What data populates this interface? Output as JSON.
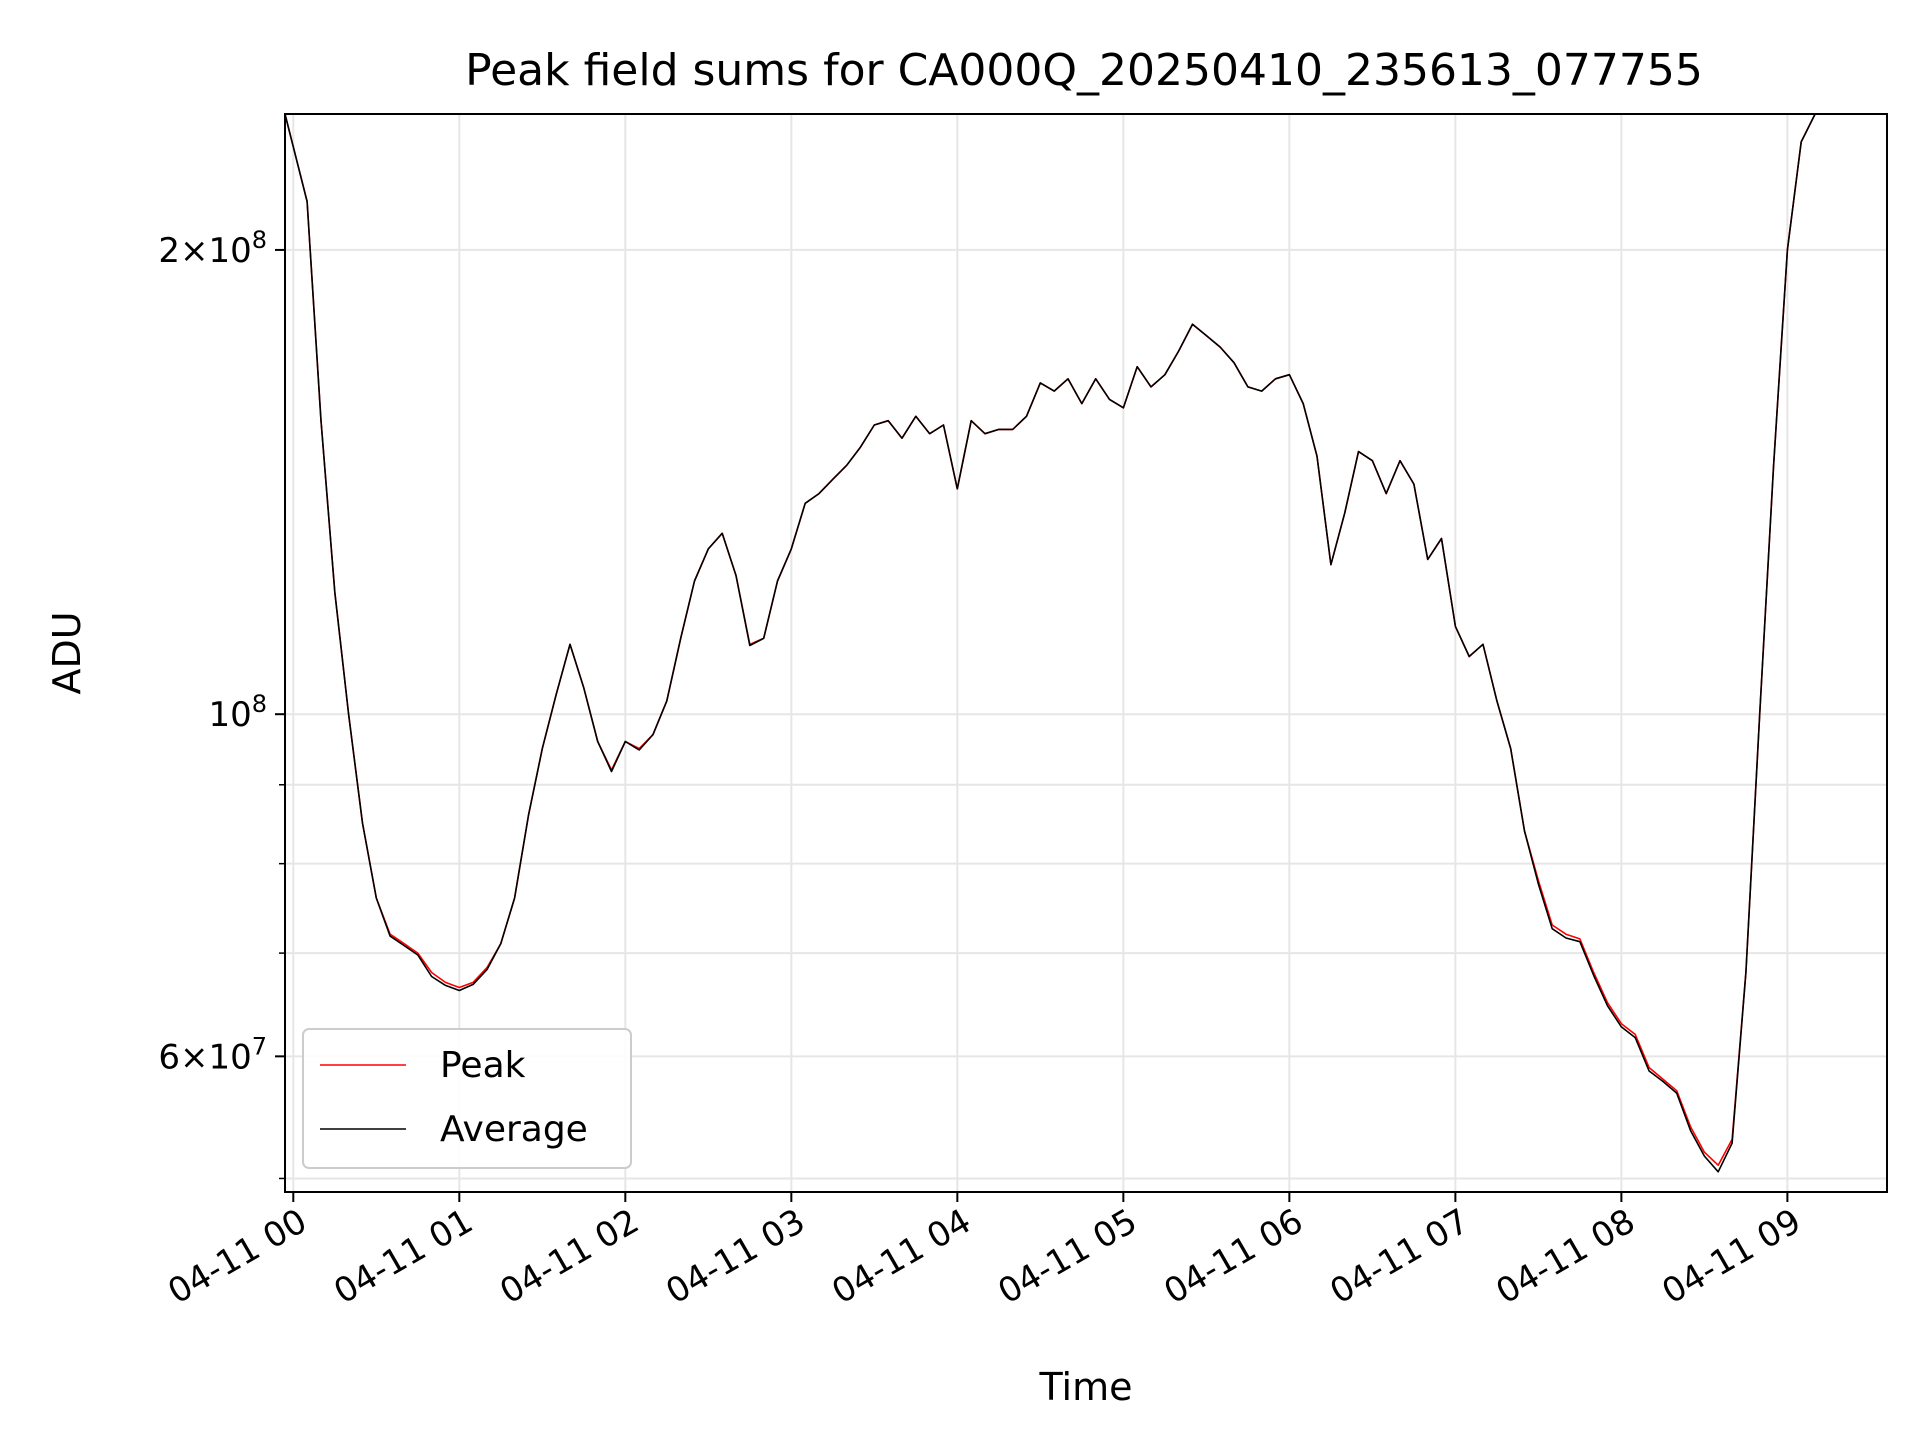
{
  "chart_data": {
    "type": "line",
    "title": "Peak field sums for CA000Q_20250410_235613_077755",
    "xlabel": "Time",
    "ylabel": "ADU",
    "y_scale": "log",
    "ylim": [
      49000000,
      245000000
    ],
    "xlim": [
      "04-10 23:57",
      "04-11 09:36"
    ],
    "x_ticks": [
      "04-11 00",
      "04-11 01",
      "04-11 02",
      "04-11 03",
      "04-11 04",
      "04-11 05",
      "04-11 06",
      "04-11 07",
      "04-11 08",
      "04-11 09"
    ],
    "y_ticks": [
      {
        "label_mantissa": "2",
        "label_exp": "8",
        "value": 200000000
      },
      {
        "label_mantissa": "",
        "label_exp": "8",
        "value": 100000000
      },
      {
        "label_mantissa": "6",
        "label_exp": "7",
        "value": 60000000
      }
    ],
    "y_minor_ticks": [
      50000000,
      70000000,
      80000000,
      90000000
    ],
    "grid": true,
    "legend_position": "lower-left",
    "series": [
      {
        "name": "Peak",
        "color": "#ff0000",
        "points": [
          [
            "04-10 23:57",
            245000000
          ],
          [
            "04-11 00:05",
            215000000
          ],
          [
            "04-11 00:10",
            155000000
          ],
          [
            "04-11 00:15",
            120000000
          ],
          [
            "04-11 00:20",
            100000000
          ],
          [
            "04-11 00:25",
            85000000
          ],
          [
            "04-11 00:30",
            76000000
          ],
          [
            "04-11 00:35",
            72000000
          ],
          [
            "04-11 00:40",
            71000000
          ],
          [
            "04-11 00:45",
            70000000
          ],
          [
            "04-11 00:50",
            68000000
          ],
          [
            "04-11 00:55",
            67000000
          ],
          [
            "04-11 01:00",
            66500000
          ],
          [
            "04-11 01:05",
            67000000
          ],
          [
            "04-11 01:10",
            68500000
          ],
          [
            "04-11 01:15",
            71000000
          ],
          [
            "04-11 01:20",
            76000000
          ],
          [
            "04-11 01:25",
            86000000
          ],
          [
            "04-11 01:30",
            95000000
          ],
          [
            "04-11 01:35",
            103000000
          ],
          [
            "04-11 01:40",
            111000000
          ],
          [
            "04-11 01:45",
            104000000
          ],
          [
            "04-11 01:50",
            96000000
          ],
          [
            "04-11 01:55",
            92000000
          ],
          [
            "04-11 02:00",
            96000000
          ],
          [
            "04-11 02:05",
            95000000
          ],
          [
            "04-11 02:10",
            97000000
          ],
          [
            "04-11 02:15",
            102000000
          ],
          [
            "04-11 02:20",
            112000000
          ],
          [
            "04-11 02:25",
            122000000
          ],
          [
            "04-11 02:30",
            128000000
          ],
          [
            "04-11 02:35",
            131000000
          ],
          [
            "04-11 02:40",
            123000000
          ],
          [
            "04-11 02:45",
            111000000
          ],
          [
            "04-11 02:50",
            112000000
          ],
          [
            "04-11 02:55",
            122000000
          ],
          [
            "04-11 03:00",
            128000000
          ],
          [
            "04-11 03:05",
            137000000
          ],
          [
            "04-11 03:10",
            139000000
          ],
          [
            "04-11 03:15",
            142000000
          ],
          [
            "04-11 03:20",
            145000000
          ],
          [
            "04-11 03:25",
            149000000
          ],
          [
            "04-11 03:30",
            154000000
          ],
          [
            "04-11 03:35",
            155000000
          ],
          [
            "04-11 03:40",
            151000000
          ],
          [
            "04-11 03:45",
            156000000
          ],
          [
            "04-11 03:50",
            152000000
          ],
          [
            "04-11 03:55",
            154000000
          ],
          [
            "04-11 04:00",
            140000000
          ],
          [
            "04-11 04:05",
            155000000
          ],
          [
            "04-11 04:10",
            152000000
          ],
          [
            "04-11 04:15",
            153000000
          ],
          [
            "04-11 04:20",
            153000000
          ],
          [
            "04-11 04:25",
            156000000
          ],
          [
            "04-11 04:30",
            164000000
          ],
          [
            "04-11 04:35",
            162000000
          ],
          [
            "04-11 04:40",
            165000000
          ],
          [
            "04-11 04:45",
            159000000
          ],
          [
            "04-11 04:50",
            165000000
          ],
          [
            "04-11 04:55",
            160000000
          ],
          [
            "04-11 05:00",
            158000000
          ],
          [
            "04-11 05:05",
            168000000
          ],
          [
            "04-11 05:10",
            163000000
          ],
          [
            "04-11 05:15",
            166000000
          ],
          [
            "04-11 05:20",
            172000000
          ],
          [
            "04-11 05:25",
            179000000
          ],
          [
            "04-11 05:30",
            176000000
          ],
          [
            "04-11 05:35",
            173000000
          ],
          [
            "04-11 05:40",
            169000000
          ],
          [
            "04-11 05:45",
            163000000
          ],
          [
            "04-11 05:50",
            162000000
          ],
          [
            "04-11 05:55",
            165000000
          ],
          [
            "04-11 06:00",
            166000000
          ],
          [
            "04-11 06:05",
            159000000
          ],
          [
            "04-11 06:10",
            147000000
          ],
          [
            "04-11 06:15",
            125000000
          ],
          [
            "04-11 06:20",
            135000000
          ],
          [
            "04-11 06:25",
            148000000
          ],
          [
            "04-11 06:30",
            146000000
          ],
          [
            "04-11 06:35",
            139000000
          ],
          [
            "04-11 06:40",
            146000000
          ],
          [
            "04-11 06:45",
            141000000
          ],
          [
            "04-11 06:50",
            126000000
          ],
          [
            "04-11 06:55",
            130000000
          ],
          [
            "04-11 07:00",
            114000000
          ],
          [
            "04-11 07:05",
            109000000
          ],
          [
            "04-11 07:10",
            111000000
          ],
          [
            "04-11 07:15",
            102000000
          ],
          [
            "04-11 07:20",
            95000000
          ],
          [
            "04-11 07:25",
            84000000
          ],
          [
            "04-11 07:30",
            78000000
          ],
          [
            "04-11 07:35",
            73000000
          ],
          [
            "04-11 07:40",
            72000000
          ],
          [
            "04-11 07:45",
            71500000
          ],
          [
            "04-11 07:50",
            68000000
          ],
          [
            "04-11 07:55",
            65000000
          ],
          [
            "04-11 08:00",
            63000000
          ],
          [
            "04-11 08:05",
            62000000
          ],
          [
            "04-11 08:10",
            59000000
          ],
          [
            "04-11 08:15",
            58000000
          ],
          [
            "04-11 08:20",
            57000000
          ],
          [
            "04-11 08:25",
            54000000
          ],
          [
            "04-11 08:30",
            52000000
          ],
          [
            "04-11 08:35",
            51000000
          ],
          [
            "04-11 08:40",
            53000000
          ],
          [
            "04-11 08:45",
            68000000
          ],
          [
            "04-11 08:50",
            100000000
          ],
          [
            "04-11 08:55",
            145000000
          ],
          [
            "04-11 09:00",
            200000000
          ],
          [
            "04-11 09:05",
            235000000
          ],
          [
            "04-11 09:10",
            245000000
          ],
          [
            "04-11 09:36",
            245000000
          ]
        ]
      },
      {
        "name": "Average",
        "color": "#000000",
        "points": [
          [
            "04-10 23:57",
            245000000
          ],
          [
            "04-11 00:05",
            215000000
          ],
          [
            "04-11 00:10",
            155000000
          ],
          [
            "04-11 00:15",
            120000000
          ],
          [
            "04-11 00:20",
            100000000
          ],
          [
            "04-11 00:25",
            85000000
          ],
          [
            "04-11 00:30",
            76000000
          ],
          [
            "04-11 00:35",
            71800000
          ],
          [
            "04-11 00:40",
            70800000
          ],
          [
            "04-11 00:45",
            69800000
          ],
          [
            "04-11 00:50",
            67600000
          ],
          [
            "04-11 00:55",
            66700000
          ],
          [
            "04-11 01:00",
            66200000
          ],
          [
            "04-11 01:05",
            66800000
          ],
          [
            "04-11 01:10",
            68300000
          ],
          [
            "04-11 01:15",
            71000000
          ],
          [
            "04-11 01:20",
            76000000
          ],
          [
            "04-11 01:25",
            86000000
          ],
          [
            "04-11 01:30",
            95000000
          ],
          [
            "04-11 01:35",
            103000000
          ],
          [
            "04-11 01:40",
            111000000
          ],
          [
            "04-11 01:45",
            104000000
          ],
          [
            "04-11 01:50",
            96000000
          ],
          [
            "04-11 01:55",
            91800000
          ],
          [
            "04-11 02:00",
            96000000
          ],
          [
            "04-11 02:05",
            94800000
          ],
          [
            "04-11 02:10",
            97000000
          ],
          [
            "04-11 02:15",
            102000000
          ],
          [
            "04-11 02:20",
            112000000
          ],
          [
            "04-11 02:25",
            122000000
          ],
          [
            "04-11 02:30",
            128000000
          ],
          [
            "04-11 02:35",
            131000000
          ],
          [
            "04-11 02:40",
            123000000
          ],
          [
            "04-11 02:45",
            110800000
          ],
          [
            "04-11 02:50",
            112000000
          ],
          [
            "04-11 02:55",
            122000000
          ],
          [
            "04-11 03:00",
            128000000
          ],
          [
            "04-11 03:05",
            137000000
          ],
          [
            "04-11 03:10",
            139000000
          ],
          [
            "04-11 03:15",
            142000000
          ],
          [
            "04-11 03:20",
            145000000
          ],
          [
            "04-11 03:25",
            149000000
          ],
          [
            "04-11 03:30",
            154000000
          ],
          [
            "04-11 03:35",
            155000000
          ],
          [
            "04-11 03:40",
            151000000
          ],
          [
            "04-11 03:45",
            156000000
          ],
          [
            "04-11 03:50",
            152000000
          ],
          [
            "04-11 03:55",
            154000000
          ],
          [
            "04-11 04:00",
            140000000
          ],
          [
            "04-11 04:05",
            155000000
          ],
          [
            "04-11 04:10",
            152000000
          ],
          [
            "04-11 04:15",
            153000000
          ],
          [
            "04-11 04:20",
            153000000
          ],
          [
            "04-11 04:25",
            156000000
          ],
          [
            "04-11 04:30",
            164000000
          ],
          [
            "04-11 04:35",
            162000000
          ],
          [
            "04-11 04:40",
            165000000
          ],
          [
            "04-11 04:45",
            159000000
          ],
          [
            "04-11 04:50",
            165000000
          ],
          [
            "04-11 04:55",
            160000000
          ],
          [
            "04-11 05:00",
            158000000
          ],
          [
            "04-11 05:05",
            168000000
          ],
          [
            "04-11 05:10",
            163000000
          ],
          [
            "04-11 05:15",
            166000000
          ],
          [
            "04-11 05:20",
            172000000
          ],
          [
            "04-11 05:25",
            179000000
          ],
          [
            "04-11 05:30",
            176000000
          ],
          [
            "04-11 05:35",
            173000000
          ],
          [
            "04-11 05:40",
            169000000
          ],
          [
            "04-11 05:45",
            163000000
          ],
          [
            "04-11 05:50",
            162000000
          ],
          [
            "04-11 05:55",
            165000000
          ],
          [
            "04-11 06:00",
            166000000
          ],
          [
            "04-11 06:05",
            159000000
          ],
          [
            "04-11 06:10",
            147000000
          ],
          [
            "04-11 06:15",
            125000000
          ],
          [
            "04-11 06:20",
            135000000
          ],
          [
            "04-11 06:25",
            148000000
          ],
          [
            "04-11 06:30",
            146000000
          ],
          [
            "04-11 06:35",
            139000000
          ],
          [
            "04-11 06:40",
            146000000
          ],
          [
            "04-11 06:45",
            141000000
          ],
          [
            "04-11 06:50",
            126000000
          ],
          [
            "04-11 06:55",
            130000000
          ],
          [
            "04-11 07:00",
            114000000
          ],
          [
            "04-11 07:05",
            109000000
          ],
          [
            "04-11 07:10",
            111000000
          ],
          [
            "04-11 07:15",
            102000000
          ],
          [
            "04-11 07:20",
            95000000
          ],
          [
            "04-11 07:25",
            84000000
          ],
          [
            "04-11 07:30",
            77600000
          ],
          [
            "04-11 07:35",
            72600000
          ],
          [
            "04-11 07:40",
            71600000
          ],
          [
            "04-11 07:45",
            71200000
          ],
          [
            "04-11 07:50",
            67700000
          ],
          [
            "04-11 07:55",
            64700000
          ],
          [
            "04-11 08:00",
            62700000
          ],
          [
            "04-11 08:05",
            61700000
          ],
          [
            "04-11 08:10",
            58700000
          ],
          [
            "04-11 08:15",
            57800000
          ],
          [
            "04-11 08:20",
            56800000
          ],
          [
            "04-11 08:25",
            53700000
          ],
          [
            "04-11 08:30",
            51700000
          ],
          [
            "04-11 08:35",
            50500000
          ],
          [
            "04-11 08:40",
            52700000
          ],
          [
            "04-11 08:45",
            68000000
          ],
          [
            "04-11 08:50",
            100000000
          ],
          [
            "04-11 08:55",
            145000000
          ],
          [
            "04-11 09:00",
            200000000
          ],
          [
            "04-11 09:05",
            235000000
          ],
          [
            "04-11 09:10",
            245000000
          ],
          [
            "04-11 09:36",
            245000000
          ]
        ]
      }
    ]
  }
}
